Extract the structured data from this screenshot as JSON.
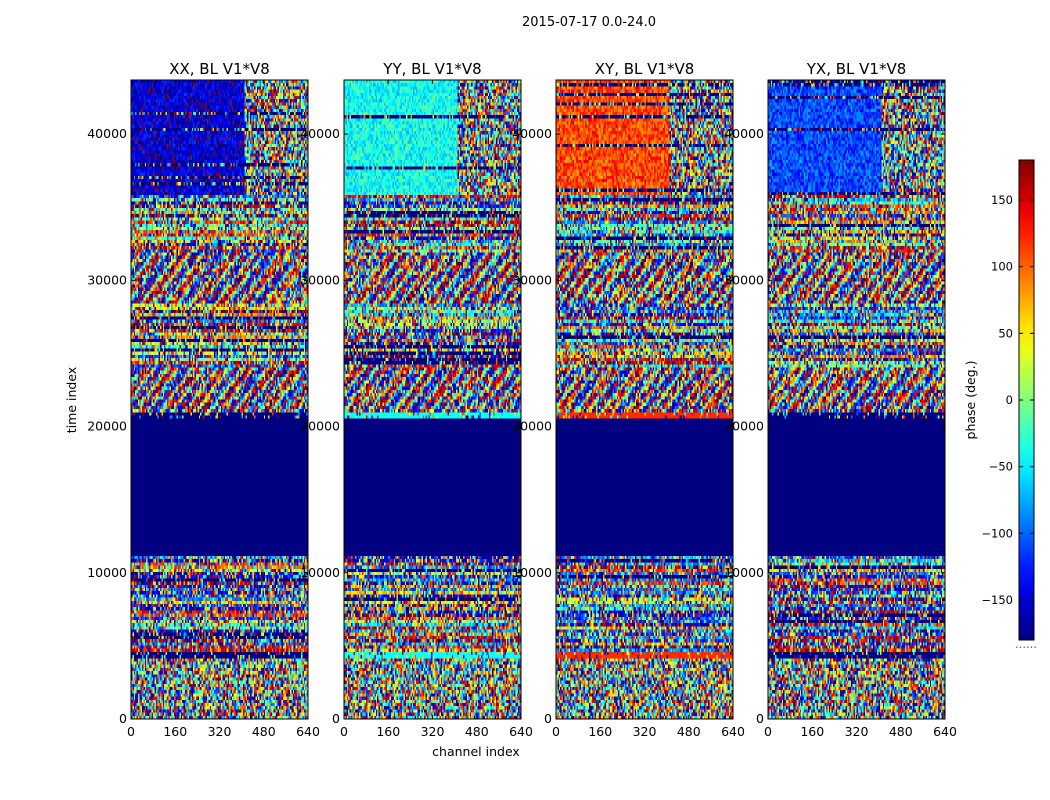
{
  "chart_data": {
    "type": "heatmap",
    "title": "2015-07-17 0.0-24.0",
    "xlabel": "channel index",
    "ylabel": "time index",
    "xlim": [
      0,
      640
    ],
    "ylim": [
      0,
      43700
    ],
    "xticks": [
      0,
      160,
      320,
      480,
      640
    ],
    "yticks": [
      0,
      10000,
      20000,
      30000,
      40000
    ],
    "colormap": "jet",
    "colorbar": {
      "label": "phase (deg.)",
      "range": [
        -180,
        180
      ],
      "ticks": [
        -150,
        -100,
        -50,
        0,
        50,
        100,
        150
      ],
      "below_marker": "......"
    },
    "panels": [
      {
        "title": "XX, BL V1*V8",
        "upper_block_value": -150,
        "split_channel": 410
      },
      {
        "title": "YY, BL V1*V8",
        "upper_block_value": -40,
        "split_channel": 410
      },
      {
        "title": "XY, BL V1*V8",
        "upper_block_value": 110,
        "split_channel": 410
      },
      {
        "title": "YX, BL V1*V8",
        "upper_block_value": -110,
        "split_channel": 410
      }
    ],
    "flagged_range": {
      "time_start": 11100,
      "time_end": 20500,
      "value": -180
    },
    "segments": [
      {
        "time_start": 0,
        "time_end": 4200,
        "kind": "noise"
      },
      {
        "time_start": 4200,
        "time_end": 4600,
        "kind": "band"
      },
      {
        "time_start": 4600,
        "time_end": 11100,
        "kind": "striped"
      },
      {
        "time_start": 11100,
        "time_end": 20500,
        "kind": "flagged"
      },
      {
        "time_start": 20500,
        "time_end": 20900,
        "kind": "band"
      },
      {
        "time_start": 20900,
        "time_end": 24000,
        "kind": "fringes"
      },
      {
        "time_start": 24000,
        "time_end": 28500,
        "kind": "striped"
      },
      {
        "time_start": 28500,
        "time_end": 32000,
        "kind": "fringes"
      },
      {
        "time_start": 32000,
        "time_end": 35800,
        "kind": "striped"
      },
      {
        "time_start": 35800,
        "time_end": 43700,
        "kind": "block"
      }
    ]
  }
}
